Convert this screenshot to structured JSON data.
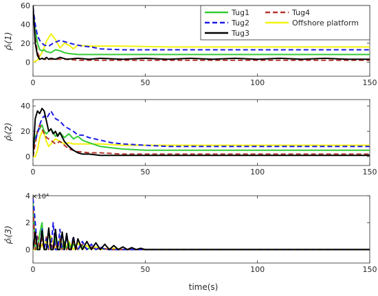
{
  "x_label": "time(s)",
  "legend": [
    {
      "name": "Tug1",
      "color": "#33cc33",
      "dash": false
    },
    {
      "name": "Tug2",
      "color": "#1a1ae6",
      "dash": true
    },
    {
      "name": "Tug3",
      "color": "#000000",
      "dash": false
    },
    {
      "name": "Tug4",
      "color": "#b3342b",
      "dash": true
    },
    {
      "name": "Offshore platform",
      "color": "#f2f20d",
      "dash": false
    }
  ],
  "chart_data": [
    {
      "type": "line",
      "ylabel": "ρ̂ᵢ(1)",
      "xlim": [
        0,
        150
      ],
      "ylim": [
        -15,
        60
      ],
      "xticks": [
        0,
        50,
        100,
        150
      ],
      "yticks": [
        0,
        20,
        40,
        60
      ],
      "multiplier": "",
      "series": [
        {
          "name": "Tug1",
          "x": [
            0,
            1,
            2,
            3,
            4,
            5,
            6,
            8,
            10,
            12,
            14,
            16,
            20,
            25,
            30,
            40,
            60,
            80,
            100,
            150
          ],
          "y": [
            55,
            35,
            20,
            13,
            12,
            13,
            11,
            10,
            13,
            12,
            10,
            9,
            8,
            8,
            8,
            8,
            8,
            8,
            8,
            8
          ]
        },
        {
          "name": "Tug2",
          "x": [
            0,
            1,
            2,
            3,
            4,
            5,
            7,
            9,
            12,
            15,
            18,
            22,
            26,
            30,
            40,
            60,
            100,
            150
          ],
          "y": [
            58,
            40,
            28,
            23,
            20,
            18,
            17,
            20,
            23,
            21,
            19,
            17,
            16,
            14,
            13,
            13,
            13,
            13
          ]
        },
        {
          "name": "Tug3",
          "x": [
            0,
            1,
            2,
            3,
            4,
            5,
            6,
            7,
            8,
            10,
            12,
            15,
            20,
            25,
            30,
            40,
            50,
            60,
            70,
            80,
            90,
            100,
            110,
            120,
            130,
            140,
            150
          ],
          "y": [
            60,
            20,
            7,
            3,
            4,
            3,
            5,
            3,
            4,
            3,
            5,
            3,
            4,
            3,
            4,
            3,
            4,
            3,
            4,
            3,
            4,
            3,
            4,
            3,
            4,
            3,
            3
          ]
        },
        {
          "name": "Tug4",
          "x": [
            0,
            1,
            2,
            3,
            4,
            5,
            6,
            8,
            10,
            12,
            15,
            20,
            30,
            40,
            60,
            80,
            100,
            120,
            150
          ],
          "y": [
            58,
            25,
            10,
            5,
            4,
            3,
            3,
            3,
            3,
            3,
            3,
            2,
            2,
            2,
            2,
            2,
            2,
            2,
            2
          ]
        },
        {
          "name": "Offshore platform",
          "x": [
            0,
            2,
            4,
            6,
            8,
            10,
            12,
            14,
            16,
            18,
            20,
            25,
            30,
            40,
            60,
            100,
            150
          ],
          "y": [
            0,
            2,
            10,
            22,
            30,
            24,
            15,
            20,
            18,
            14,
            18,
            17,
            17,
            17,
            16,
            16,
            16
          ]
        }
      ]
    },
    {
      "type": "line",
      "ylabel": "ρ̂ᵢ(2)",
      "xlim": [
        0,
        150
      ],
      "ylim": [
        -7,
        45
      ],
      "xticks": [
        0,
        50,
        100,
        150
      ],
      "yticks": [
        0,
        20,
        40
      ],
      "multiplier": "",
      "series": [
        {
          "name": "Tug1",
          "x": [
            0,
            1,
            2,
            3,
            4,
            5,
            6,
            8,
            10,
            12,
            14,
            16,
            18,
            20,
            22,
            25,
            30,
            35,
            40,
            50,
            60,
            80,
            100,
            150
          ],
          "y": [
            5,
            15,
            20,
            22,
            25,
            20,
            18,
            22,
            16,
            19,
            15,
            18,
            14,
            16,
            13,
            11,
            8,
            7,
            6,
            5,
            5,
            5,
            5,
            5
          ]
        },
        {
          "name": "Tug2",
          "x": [
            0,
            2,
            3,
            4,
            5,
            6,
            8,
            10,
            12,
            14,
            16,
            18,
            20,
            22,
            25,
            30,
            35,
            40,
            50,
            60,
            100,
            150
          ],
          "y": [
            8,
            18,
            25,
            30,
            32,
            30,
            36,
            30,
            28,
            24,
            22,
            20,
            17,
            17,
            15,
            13,
            11,
            10,
            9,
            8,
            8,
            8
          ]
        },
        {
          "name": "Tug3",
          "x": [
            0,
            1,
            2,
            3,
            4,
            5,
            6,
            7,
            8,
            9,
            10,
            11,
            12,
            14,
            16,
            18,
            20,
            22,
            25,
            30,
            40,
            50,
            100,
            150
          ],
          "y": [
            0,
            30,
            36,
            34,
            38,
            36,
            28,
            20,
            22,
            18,
            20,
            16,
            19,
            12,
            8,
            5,
            3,
            2,
            2,
            1,
            1,
            1,
            1,
            1
          ]
        },
        {
          "name": "Tug4",
          "x": [
            0,
            1,
            2,
            3,
            4,
            5,
            6,
            8,
            10,
            12,
            14,
            16,
            20,
            25,
            30,
            40,
            50,
            100,
            150
          ],
          "y": [
            0,
            10,
            20,
            25,
            22,
            18,
            15,
            13,
            10,
            12,
            9,
            6,
            4,
            3,
            3,
            2,
            2,
            2,
            2
          ]
        },
        {
          "name": "Offshore platform",
          "x": [
            0,
            1,
            2,
            3,
            4,
            5,
            6,
            7,
            8,
            10,
            12,
            14,
            16,
            18,
            20,
            25,
            30,
            40,
            60,
            100,
            150
          ],
          "y": [
            0,
            0,
            5,
            15,
            20,
            18,
            12,
            8,
            10,
            14,
            12,
            10,
            11,
            10,
            10,
            10,
            10,
            9,
            9,
            9,
            9
          ]
        }
      ]
    },
    {
      "type": "line",
      "ylabel": "ρ̂ᵢ(3)",
      "xlim": [
        0,
        150
      ],
      "ylim": [
        -1,
        4
      ],
      "xticks": [
        0,
        50,
        100,
        150
      ],
      "yticks": [
        0,
        2,
        4
      ],
      "multiplier": "×10⁴",
      "series": [
        {
          "name": "Tug1",
          "x": [
            0,
            1,
            2,
            3,
            4,
            5,
            6,
            7,
            8,
            9,
            10,
            11,
            12,
            13,
            14,
            15,
            16,
            17,
            18,
            20,
            22,
            24,
            26,
            28,
            30,
            35,
            40,
            50,
            150
          ],
          "y": [
            3.5,
            0,
            0,
            1.2,
            2,
            0,
            0,
            1.5,
            0,
            0,
            1,
            0,
            0.8,
            0,
            0.6,
            0,
            0.5,
            0,
            0.4,
            0,
            0.3,
            0,
            0.2,
            0,
            0.1,
            0,
            0,
            0,
            0
          ]
        },
        {
          "name": "Tug2",
          "x": [
            0,
            0.5,
            1,
            2,
            3,
            4,
            5,
            6,
            7,
            8,
            9,
            10,
            11,
            12,
            13,
            14,
            15,
            16,
            17,
            18,
            19,
            20,
            22,
            24,
            26,
            28,
            30,
            32,
            35,
            40,
            150
          ],
          "y": [
            3.8,
            3,
            2,
            0,
            0,
            1.6,
            0,
            0.8,
            0,
            0,
            2,
            0,
            0,
            1.5,
            0,
            0,
            1,
            0,
            0,
            1,
            0,
            0,
            0.6,
            0,
            0.4,
            0,
            0.2,
            0,
            0,
            0,
            0
          ]
        },
        {
          "name": "Tug3",
          "x": [
            0,
            1,
            2,
            3,
            4,
            5,
            6,
            7,
            8,
            9,
            10,
            11,
            12,
            13,
            14,
            15,
            16,
            17,
            18,
            19,
            20,
            22,
            24,
            26,
            28,
            30,
            32,
            34,
            36,
            38,
            40,
            42,
            44,
            46,
            48,
            50,
            55,
            60,
            150
          ],
          "y": [
            0,
            1.3,
            0,
            0,
            1.4,
            0,
            0,
            1.6,
            0,
            0,
            1.5,
            0,
            0,
            1.3,
            0,
            1.2,
            0,
            0,
            0.9,
            0,
            0.8,
            0,
            0.6,
            0,
            0.5,
            0,
            0.4,
            0,
            0.3,
            0,
            0.2,
            0,
            0.15,
            0,
            0.1,
            0,
            0,
            0,
            0
          ]
        },
        {
          "name": "Tug4",
          "x": [
            0,
            1,
            2,
            3,
            4,
            5,
            6,
            7,
            8,
            9,
            10,
            11,
            12,
            13,
            14,
            15,
            16,
            17,
            18,
            20,
            22,
            24,
            26,
            28,
            30,
            34,
            40,
            150
          ],
          "y": [
            3,
            0,
            1,
            0,
            0.8,
            0,
            1,
            0,
            0.6,
            0,
            0.5,
            0,
            0.8,
            0,
            0.4,
            0,
            0.3,
            0,
            0.6,
            0,
            0.4,
            0,
            0.2,
            0,
            0.1,
            0,
            0,
            0
          ]
        },
        {
          "name": "Offshore platform",
          "x": [
            0,
            1,
            2,
            3,
            4,
            5,
            6,
            7,
            8,
            10,
            12,
            14,
            16,
            18,
            20,
            22,
            24,
            26,
            28,
            30,
            35,
            40,
            150
          ],
          "y": [
            0,
            0,
            0.2,
            0,
            0.4,
            0,
            0.8,
            0,
            1,
            0,
            0.8,
            0,
            0.6,
            0,
            0.5,
            0,
            0.3,
            0,
            0.2,
            0,
            0.1,
            0,
            0
          ]
        }
      ]
    }
  ]
}
